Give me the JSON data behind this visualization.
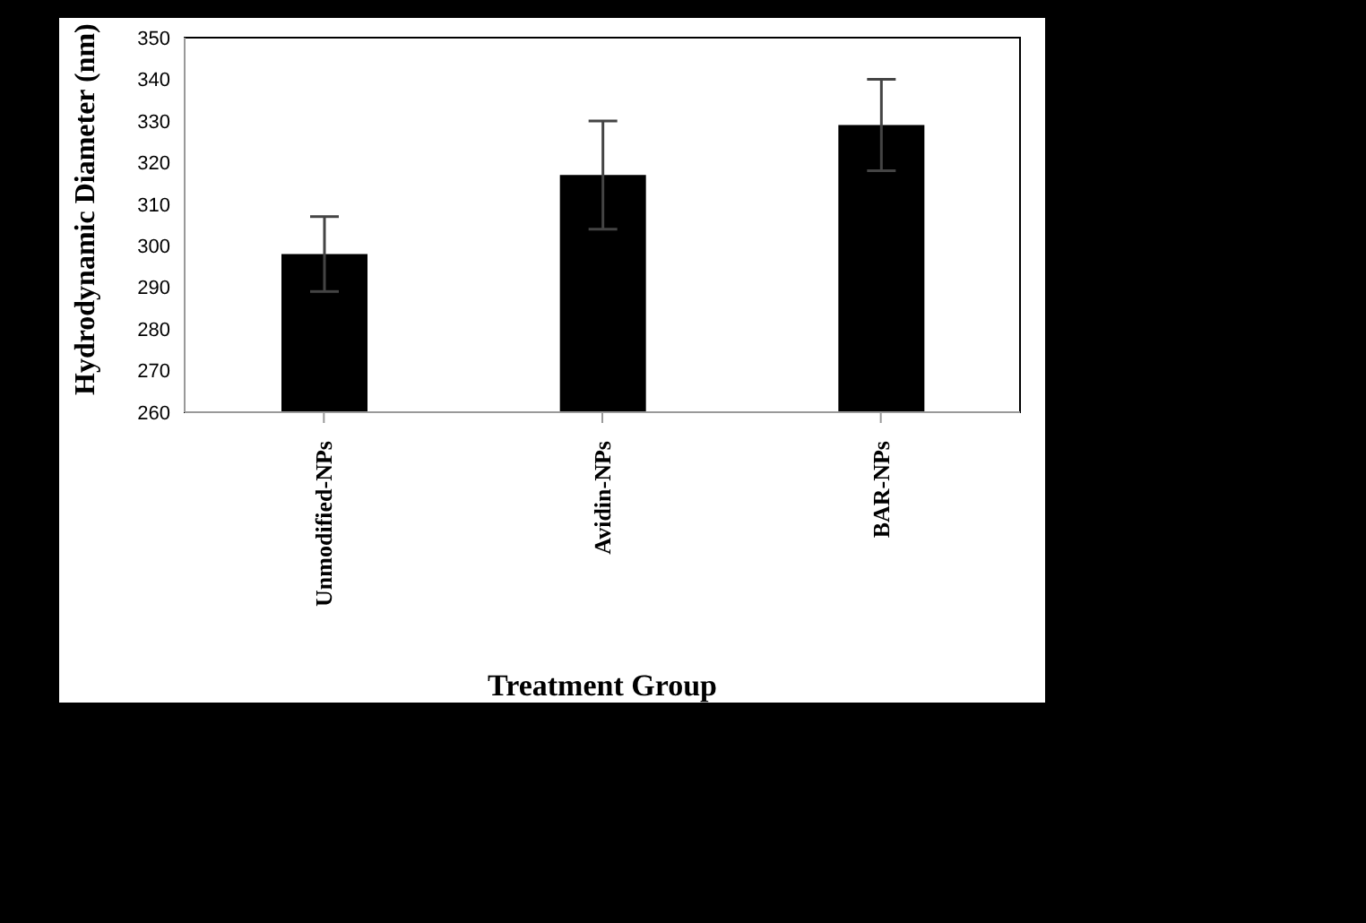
{
  "chart_data": {
    "type": "bar",
    "xlabel": "Treatment Group",
    "ylabel": "Hydrodynamic Diameter (nm)",
    "categories": [
      "Unmodified-NPs",
      "Avidin-NPs",
      "BAR-NPs"
    ],
    "values": [
      298,
      317,
      329
    ],
    "errors": [
      9,
      13,
      11
    ],
    "color": "#000000",
    "ylim": [
      260,
      350
    ],
    "yticks": [
      260,
      270,
      280,
      290,
      300,
      310,
      320,
      330,
      340,
      350
    ],
    "grid": false,
    "legend": false
  }
}
